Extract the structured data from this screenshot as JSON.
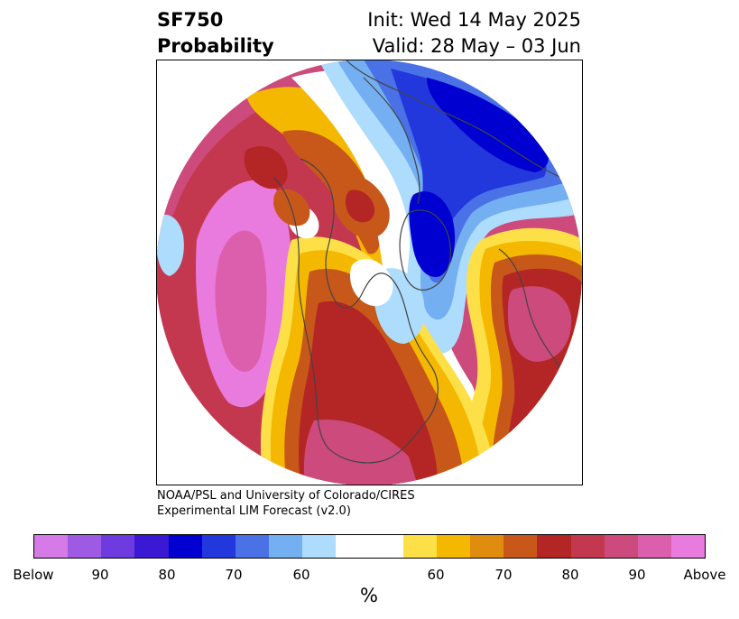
{
  "header": {
    "title_line1": "SF750",
    "title_line2": "Probability",
    "init": "Init: Wed 14 May 2025",
    "valid": "Valid: 28 May – 03 Jun"
  },
  "credit": {
    "line1": "NOAA/PSL and University of Colorado/CIRES",
    "line2": "Experimental LIM Forecast (v2.0)"
  },
  "colorbar": {
    "unit": "%",
    "colors": [
      "#d67ae8",
      "#9f5ae3",
      "#6d3be0",
      "#3a18d4",
      "#0000d0",
      "#2238dc",
      "#4a72e6",
      "#74aff2",
      "#aedcfc",
      "#ffffff",
      "#ffffff",
      "#fde047",
      "#f5b800",
      "#e08c0e",
      "#c8581a",
      "#b42526",
      "#c4384f",
      "#cc4b7c",
      "#db5fac",
      "#e97ade"
    ],
    "ticks": [
      "Below",
      "90",
      "80",
      "70",
      "60",
      "60",
      "70",
      "80",
      "90",
      "Above"
    ]
  },
  "map": {
    "region": "Northern Hemisphere polar stereographic",
    "palette": {
      "above_extreme": "#e97ade",
      "above_90": "#db5fac",
      "above_85": "#cc4b7c",
      "above_80": "#c4384f",
      "above_75": "#b42526",
      "above_70": "#c8581a",
      "above_65": "#e08c0e",
      "above_60": "#f5b800",
      "above_55": "#fde047",
      "neutral": "#ffffff",
      "below_55": "#aedcfc",
      "below_60": "#74aff2",
      "below_65": "#4a72e6",
      "below_70": "#2238dc",
      "below_75": "#0000d0",
      "below_85": "#6d3be0",
      "below_90": "#9f5ae3",
      "border": "#444444"
    }
  }
}
